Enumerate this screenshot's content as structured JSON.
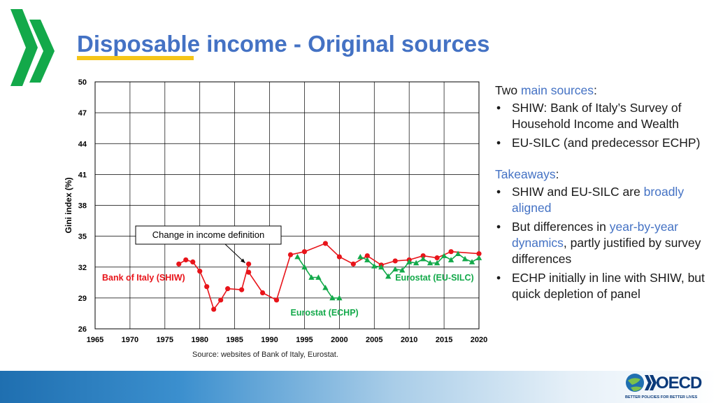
{
  "slide": {
    "title": "Disposable income - Original sources",
    "source": "Source: websites of Bank of Italy, Eurostat."
  },
  "side_text": {
    "intro_prefix": "Two ",
    "intro_accent": "main sources",
    "intro_suffix": ":",
    "sources": [
      "SHIW: Bank of Italy’s Survey of Household Income and Wealth",
      "EU-SILC (and predecessor ECHP)"
    ],
    "takeaways_label": "Takeaways",
    "takeaways_suffix": ":",
    "takeaway1_prefix": "SHIW and EU-SILC are ",
    "takeaway1_accent": "broadly aligned",
    "takeaway2_prefix": "But differences in ",
    "takeaway2_accent": "year-by-year dynamics",
    "takeaway2_suffix": ", partly justified by survey differences",
    "takeaway3": "ECHP initially in line with SHIW, but quick depletion of panel"
  },
  "branding": {
    "oecd_word": "OECD",
    "oecd_tagline": "BETTER POLICIES FOR BETTER LIVES"
  },
  "chart_data": {
    "type": "line",
    "ylabel": "Gini index (%)",
    "xlim": [
      1965,
      2020
    ],
    "ylim": [
      26,
      50
    ],
    "xticks": [
      1965,
      1970,
      1975,
      1980,
      1985,
      1990,
      1995,
      2000,
      2005,
      2010,
      2015,
      2020
    ],
    "yticks": [
      26,
      29,
      32,
      35,
      38,
      41,
      44,
      47,
      50
    ],
    "grid": true,
    "annotation": {
      "text": "Change in income definition",
      "x": 1986.5,
      "y": 32.4
    },
    "series": [
      {
        "name": "Bank of Italy (SHIW)",
        "color": "#e8141a",
        "marker": "circle",
        "label_x": 1966,
        "label_y": 30.7,
        "segments": [
          [
            [
              1977,
              32.3
            ],
            [
              1978,
              32.7
            ],
            [
              1979,
              32.5
            ],
            [
              1980,
              31.6
            ],
            [
              1981,
              30.1
            ],
            [
              1982,
              27.9
            ],
            [
              1983,
              28.8
            ],
            [
              1984,
              29.9
            ],
            [
              1986,
              29.8
            ],
            [
              1987,
              32.3
            ]
          ],
          [
            [
              1987,
              31.5
            ],
            [
              1989,
              29.5
            ],
            [
              1991,
              28.8
            ],
            [
              1993,
              33.2
            ],
            [
              1995,
              33.5
            ],
            [
              1998,
              34.3
            ],
            [
              2000,
              33.0
            ],
            [
              2002,
              32.3
            ],
            [
              2004,
              33.1
            ],
            [
              2006,
              32.2
            ],
            [
              2008,
              32.6
            ],
            [
              2010,
              32.7
            ],
            [
              2012,
              33.1
            ],
            [
              2014,
              32.9
            ],
            [
              2016,
              33.5
            ],
            [
              2020,
              33.3
            ]
          ]
        ]
      },
      {
        "name": "Eurostat (ECHP)",
        "color": "#13a94a",
        "marker": "triangle",
        "label_x": 1993,
        "label_y": 27.3,
        "segments": [
          [
            [
              1994,
              33.0
            ],
            [
              1995,
              32.0
            ],
            [
              1996,
              31.0
            ],
            [
              1997,
              31.0
            ],
            [
              1998,
              30.0
            ],
            [
              1999,
              29.0
            ],
            [
              2000,
              29.0
            ]
          ]
        ]
      },
      {
        "name": "Eurostat (EU-SILC)",
        "color": "#13a94a",
        "marker": "triangle",
        "label_x": 2008,
        "label_y": 30.7,
        "segments": [
          [
            [
              2003,
              33.0
            ],
            [
              2004,
              32.7
            ],
            [
              2005,
              32.1
            ],
            [
              2006,
              32.0
            ],
            [
              2007,
              31.1
            ],
            [
              2008,
              31.8
            ],
            [
              2009,
              31.7
            ],
            [
              2010,
              32.5
            ],
            [
              2011,
              32.4
            ],
            [
              2012,
              32.8
            ],
            [
              2013,
              32.4
            ],
            [
              2014,
              32.4
            ],
            [
              2015,
              33.1
            ],
            [
              2016,
              32.7
            ],
            [
              2017,
              33.3
            ],
            [
              2018,
              32.8
            ],
            [
              2019,
              32.5
            ],
            [
              2020,
              32.9
            ]
          ]
        ]
      }
    ]
  }
}
